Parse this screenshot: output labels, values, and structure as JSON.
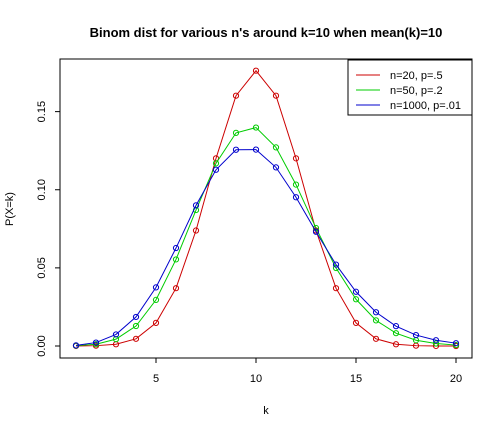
{
  "chart_data": {
    "type": "line",
    "title": "Binom dist for various n's around k=10 when mean(k)=10",
    "xlabel": "k",
    "ylabel": "P(X=k)",
    "xlim": [
      1,
      20
    ],
    "ylim": [
      0,
      0.176
    ],
    "xticks": [
      5,
      10,
      15,
      20
    ],
    "yticks": [
      0.0,
      0.05,
      0.1,
      0.15
    ],
    "ytick_labels": [
      "0.00",
      "0.05",
      "0.10",
      "0.15"
    ],
    "grid": false,
    "legend_position": "top-right",
    "x": [
      1,
      2,
      3,
      4,
      5,
      6,
      7,
      8,
      9,
      10,
      11,
      12,
      13,
      14,
      15,
      16,
      17,
      18,
      19,
      20
    ],
    "series": [
      {
        "name": "n=20, p=.5",
        "color": "#CC0000",
        "values": [
          2e-05,
          0.0002,
          0.0011,
          0.0046,
          0.0148,
          0.037,
          0.0739,
          0.1201,
          0.1602,
          0.1762,
          0.1602,
          0.1201,
          0.0739,
          0.037,
          0.0148,
          0.0046,
          0.0011,
          0.0002,
          2e-05,
          1e-06
        ]
      },
      {
        "name": "n=50, p=.2",
        "color": "#00CC00",
        "values": [
          0.0002,
          0.0011,
          0.0044,
          0.0128,
          0.0295,
          0.0554,
          0.087,
          0.1169,
          0.1364,
          0.1398,
          0.1271,
          0.1033,
          0.0755,
          0.0499,
          0.0299,
          0.0164,
          0.0082,
          0.0037,
          0.0016,
          0.0006
        ]
      },
      {
        "name": "n=1000, p=.01",
        "color": "#0000CC",
        "values": [
          0.0004,
          0.0022,
          0.0074,
          0.0186,
          0.0375,
          0.0627,
          0.09,
          0.1128,
          0.1256,
          0.1257,
          0.1143,
          0.0952,
          0.0731,
          0.0521,
          0.0347,
          0.0216,
          0.0127,
          0.007,
          0.0037,
          0.0018
        ]
      }
    ]
  }
}
